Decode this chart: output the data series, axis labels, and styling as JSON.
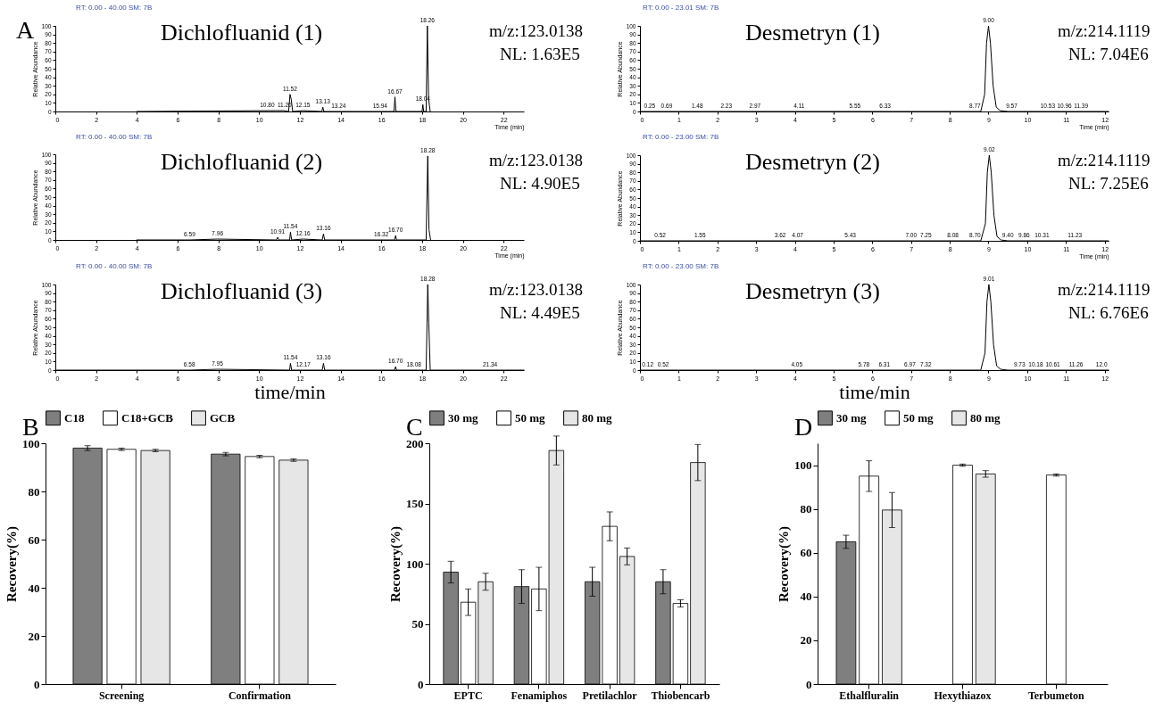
{
  "chart_data": [
    {
      "type": "line",
      "title": "Dichlofluanid (1)",
      "ylabel": "Relative Abundance",
      "xlabel": "Time (min)",
      "xlim": [
        0,
        23
      ],
      "xticks": [
        0,
        2,
        4,
        6,
        8,
        10,
        12,
        14,
        16,
        18,
        20,
        22
      ],
      "ylim": [
        0,
        100
      ],
      "yticks": [
        0,
        10,
        20,
        30,
        40,
        50,
        60,
        70,
        80,
        90,
        100
      ],
      "series": [
        {
          "color": "#000000",
          "x": [
            4,
            10.8,
            11.2,
            11.45,
            11.52,
            11.58,
            11.65,
            12.15,
            13.08,
            13.13,
            13.18,
            16.62,
            16.67,
            16.72,
            18.0,
            18.04,
            18.08,
            18.2,
            18.26,
            18.32,
            18.4
          ],
          "values": [
            0,
            1,
            1,
            0,
            20,
            14,
            0,
            1,
            0,
            5,
            0,
            0,
            17,
            0,
            0,
            8,
            0,
            0,
            100,
            15,
            0
          ]
        }
      ],
      "annotations": [
        "RT: 0.00 - 40.00 SM: 7B",
        "m/z:123.0138",
        "NL: 1.63E5",
        "A",
        {
          "text": "10.80",
          "x": 10.4,
          "y": 1
        },
        {
          "text": "11.20",
          "x": 11.25,
          "y": 1
        },
        {
          "text": "11.52",
          "x": 11.52,
          "y": 20
        },
        {
          "text": "12.15",
          "x": 12.15,
          "y": 1
        },
        {
          "text": "13.13",
          "x": 13.13,
          "y": 5
        },
        {
          "text": "13.24",
          "x": 13.9,
          "y": 0
        },
        {
          "text": "15.94",
          "x": 15.94,
          "y": 0
        },
        {
          "text": "16.67",
          "x": 16.67,
          "y": 17
        },
        {
          "text": "18.04",
          "x": 18.04,
          "y": 8
        },
        {
          "text": "18.26",
          "x": 18.26,
          "y": 100
        }
      ]
    },
    {
      "type": "line",
      "title": "Dichlofluanid (2)",
      "ylabel": "Relative Abundance",
      "xlabel": "Time (min)",
      "xlim": [
        0,
        23
      ],
      "xticks": [
        0,
        2,
        4,
        6,
        8,
        10,
        12,
        14,
        16,
        18,
        20,
        22
      ],
      "ylim": [
        0,
        100
      ],
      "yticks": [
        0,
        10,
        20,
        30,
        40,
        50,
        60,
        70,
        80,
        90,
        100
      ],
      "series": [
        {
          "color": "#000000",
          "x": [
            4,
            6.59,
            7.96,
            10.85,
            10.91,
            10.97,
            11.5,
            11.54,
            11.6,
            12.16,
            13.1,
            13.16,
            13.22,
            16.65,
            16.7,
            16.75,
            18.2,
            18.28,
            18.34,
            18.42
          ],
          "values": [
            0,
            0,
            1,
            0,
            3,
            0,
            0,
            9,
            0,
            1,
            0,
            7,
            0,
            0,
            5,
            0,
            0,
            98,
            12,
            0
          ]
        }
      ],
      "annotations": [
        "RT: 0.00 - 40.00 SM: 7B",
        "m/z:123.0138",
        "NL: 4.90E5",
        {
          "text": "6.59",
          "x": 6.59,
          "y": 0
        },
        {
          "text": "7.96",
          "x": 7.96,
          "y": 1
        },
        {
          "text": "10.91",
          "x": 10.91,
          "y": 3
        },
        {
          "text": "11.54",
          "x": 11.54,
          "y": 9
        },
        {
          "text": "12.16",
          "x": 12.16,
          "y": 1
        },
        {
          "text": "13.16",
          "x": 13.16,
          "y": 7
        },
        {
          "text": "16.32",
          "x": 16.0,
          "y": 0
        },
        {
          "text": "16.70",
          "x": 16.7,
          "y": 5
        },
        {
          "text": "18.28",
          "x": 18.28,
          "y": 98
        }
      ]
    },
    {
      "type": "line",
      "title": "Dichlofluanid (3)",
      "ylabel": "Relative Abundance",
      "xlabel": "time/min",
      "xlim": [
        0,
        23
      ],
      "xticks": [
        0,
        2,
        4,
        6,
        8,
        10,
        12,
        14,
        16,
        18,
        20,
        22
      ],
      "ylim": [
        0,
        100
      ],
      "yticks": [
        0,
        10,
        20,
        30,
        40,
        50,
        60,
        70,
        80,
        90,
        100
      ],
      "series": [
        {
          "color": "#000000",
          "x": [
            0,
            6.58,
            7.95,
            11.5,
            11.54,
            11.6,
            12.17,
            13.1,
            13.16,
            13.22,
            16.65,
            16.7,
            16.75,
            18.08,
            18.2,
            18.28,
            18.33,
            18.4,
            21.34,
            23
          ],
          "values": [
            0,
            0,
            1,
            0,
            8,
            0,
            0,
            0,
            8,
            0,
            0,
            4,
            0,
            0,
            0,
            100,
            55,
            0,
            0,
            0
          ]
        }
      ],
      "annotations": [
        "RT: 0.00 - 40.00 SM: 7B",
        "m/z:123.0138",
        "NL: 4.49E5",
        {
          "text": "6.58",
          "x": 6.58,
          "y": 0
        },
        {
          "text": "7.95",
          "x": 7.95,
          "y": 1
        },
        {
          "text": "11.54",
          "x": 11.54,
          "y": 8
        },
        {
          "text": "12.17",
          "x": 12.17,
          "y": 0
        },
        {
          "text": "13.16",
          "x": 13.16,
          "y": 8
        },
        {
          "text": "16.70",
          "x": 16.7,
          "y": 4
        },
        {
          "text": "18.08",
          "x": 17.6,
          "y": 0
        },
        {
          "text": "18.28",
          "x": 18.28,
          "y": 100
        },
        {
          "text": "21.34",
          "x": 21.34,
          "y": 0
        }
      ]
    },
    {
      "type": "line",
      "title": "Desmetryn (1)",
      "ylabel": "Relative Abundance",
      "xlabel": "Time (min)",
      "xlim": [
        0,
        12.1
      ],
      "xticks": [
        0,
        1,
        2,
        3,
        4,
        5,
        6,
        7,
        8,
        9,
        10,
        11,
        12
      ],
      "ylim": [
        0,
        100
      ],
      "yticks": [
        0,
        10,
        20,
        30,
        40,
        50,
        60,
        70,
        80,
        90,
        100
      ],
      "series": [
        {
          "color": "#000000",
          "x": [
            0,
            8.8,
            8.9,
            8.95,
            9.0,
            9.05,
            9.12,
            9.2,
            9.3,
            9.5,
            12.1
          ],
          "values": [
            0,
            0,
            20,
            80,
            100,
            80,
            30,
            5,
            1,
            0,
            0
          ]
        }
      ],
      "annotations": [
        "RT: 0.00 - 23.01 SM: 7B",
        "m/z:214.1119",
        "NL: 7.04E6",
        {
          "text": "0.25",
          "x": 0.25,
          "y": 0
        },
        {
          "text": "0.69",
          "x": 0.69,
          "y": 0
        },
        {
          "text": "1.48",
          "x": 1.48,
          "y": 0
        },
        {
          "text": "2.23",
          "x": 2.23,
          "y": 0
        },
        {
          "text": "2.97",
          "x": 2.97,
          "y": 0
        },
        {
          "text": "4.11",
          "x": 4.11,
          "y": 0
        },
        {
          "text": "5.55",
          "x": 5.55,
          "y": 0
        },
        {
          "text": "6.33",
          "x": 6.33,
          "y": 0
        },
        {
          "text": "8.77",
          "x": 8.65,
          "y": 0
        },
        {
          "text": "9.00",
          "x": 9.0,
          "y": 100
        },
        {
          "text": "9.57",
          "x": 9.6,
          "y": 0
        },
        {
          "text": "10.53",
          "x": 10.53,
          "y": 0
        },
        {
          "text": "10.96",
          "x": 10.96,
          "y": 0
        },
        {
          "text": "11.39",
          "x": 11.39,
          "y": 0
        }
      ]
    },
    {
      "type": "line",
      "title": "Desmetryn (2)",
      "ylabel": "Relative Abundance",
      "xlabel": "Time (min)",
      "xlim": [
        0,
        12.1
      ],
      "xticks": [
        0,
        1,
        2,
        3,
        4,
        5,
        6,
        7,
        8,
        9,
        10,
        11,
        12
      ],
      "ylim": [
        0,
        100
      ],
      "yticks": [
        0,
        10,
        20,
        30,
        40,
        50,
        60,
        70,
        80,
        90,
        100
      ],
      "series": [
        {
          "color": "#000000",
          "x": [
            0,
            8.8,
            8.92,
            8.97,
            9.02,
            9.07,
            9.14,
            9.22,
            9.32,
            9.5,
            12.1
          ],
          "values": [
            0,
            0,
            20,
            80,
            100,
            80,
            30,
            5,
            1,
            0,
            0
          ]
        }
      ],
      "annotations": [
        "RT: 0.00 - 23.00 SM: 7B",
        "m/z:214.1119",
        "NL: 7.25E6",
        {
          "text": "0.52",
          "x": 0.52,
          "y": 0
        },
        {
          "text": "1.55",
          "x": 1.55,
          "y": 0
        },
        {
          "text": "3.62",
          "x": 3.62,
          "y": 0
        },
        {
          "text": "4.07",
          "x": 4.07,
          "y": 0
        },
        {
          "text": "5.43",
          "x": 5.43,
          "y": 0
        },
        {
          "text": "7.00",
          "x": 7.0,
          "y": 0
        },
        {
          "text": "7.25",
          "x": 7.38,
          "y": 0
        },
        {
          "text": "8.08",
          "x": 8.08,
          "y": 0
        },
        {
          "text": "8.70",
          "x": 8.65,
          "y": 0
        },
        {
          "text": "9.02",
          "x": 9.02,
          "y": 100
        },
        {
          "text": "9.40",
          "x": 9.5,
          "y": 0
        },
        {
          "text": "9.86",
          "x": 9.92,
          "y": 0
        },
        {
          "text": "10.31",
          "x": 10.38,
          "y": 0
        },
        {
          "text": "11.23",
          "x": 11.23,
          "y": 0
        }
      ]
    },
    {
      "type": "line",
      "title": "Desmetryn (3)",
      "ylabel": "Relative Abundance",
      "xlabel": "time/min",
      "xlim": [
        0,
        12.1
      ],
      "xticks": [
        0,
        1,
        2,
        3,
        4,
        5,
        6,
        7,
        8,
        9,
        10,
        11,
        12
      ],
      "ylim": [
        0,
        100
      ],
      "yticks": [
        0,
        10,
        20,
        30,
        40,
        50,
        60,
        70,
        80,
        90,
        100
      ],
      "series": [
        {
          "color": "#000000",
          "x": [
            0,
            8.8,
            8.91,
            8.96,
            9.01,
            9.06,
            9.13,
            9.21,
            9.31,
            9.5,
            12.1
          ],
          "values": [
            0,
            0,
            20,
            80,
            100,
            80,
            30,
            5,
            1,
            0,
            0
          ]
        }
      ],
      "annotations": [
        "RT: 0.00 - 23.00 SM: 7B",
        "m/z:214.1119",
        "NL: 6.76E6",
        {
          "text": "0.12",
          "x": 0.2,
          "y": 0
        },
        {
          "text": "0.52",
          "x": 0.6,
          "y": 0
        },
        {
          "text": "4.05",
          "x": 4.05,
          "y": 0
        },
        {
          "text": "5.78",
          "x": 5.78,
          "y": 0
        },
        {
          "text": "6.31",
          "x": 6.31,
          "y": 0
        },
        {
          "text": "6.97",
          "x": 6.97,
          "y": 0
        },
        {
          "text": "7.32",
          "x": 7.38,
          "y": 0
        },
        {
          "text": "9.01",
          "x": 9.01,
          "y": 100
        },
        {
          "text": "9.73",
          "x": 9.8,
          "y": 0
        },
        {
          "text": "10.18",
          "x": 10.22,
          "y": 0
        },
        {
          "text": "10.61",
          "x": 10.66,
          "y": 0
        },
        {
          "text": "11.26",
          "x": 11.26,
          "y": 0
        },
        {
          "text": "12.0",
          "x": 11.92,
          "y": 0
        }
      ]
    },
    {
      "type": "bar",
      "ylabel": "Recovery(%)",
      "categories": [
        "Screening",
        "Confirmation"
      ],
      "ylim": [
        0,
        100
      ],
      "yticks": [
        0,
        20,
        40,
        60,
        80,
        100
      ],
      "legend": "top",
      "series": [
        {
          "name": "C18",
          "color": "#7f7f7f",
          "values": [
            98,
            95.5
          ],
          "errors": [
            1,
            0.7
          ]
        },
        {
          "name": "C18+GCB",
          "color": "#ffffff",
          "values": [
            97.5,
            94.5
          ],
          "errors": [
            0.5,
            0.5
          ]
        },
        {
          "name": "GCB",
          "color": "#e6e6e6",
          "values": [
            97,
            93
          ],
          "errors": [
            0.5,
            0.5
          ]
        }
      ],
      "annotations": [
        "B"
      ]
    },
    {
      "type": "bar",
      "ylabel": "Recovery(%)",
      "categories": [
        "EPTC",
        "Fenamiphos",
        "Pretilachlor",
        "Thiobencarb"
      ],
      "ylim": [
        0,
        200
      ],
      "yticks": [
        0,
        50,
        100,
        150,
        200
      ],
      "legend": "top",
      "series": [
        {
          "name": "30 mg",
          "color": "#7f7f7f",
          "values": [
            93,
            81,
            85,
            85
          ],
          "errors": [
            9,
            14,
            12,
            10
          ]
        },
        {
          "name": "50 mg",
          "color": "#ffffff",
          "values": [
            68,
            79,
            131,
            67
          ],
          "errors": [
            11,
            18,
            12,
            3
          ]
        },
        {
          "name": "80 mg",
          "color": "#e6e6e6",
          "values": [
            85,
            194,
            106,
            184
          ],
          "errors": [
            7,
            12,
            7,
            15
          ]
        }
      ],
      "annotations": [
        "C"
      ]
    },
    {
      "type": "bar",
      "ylabel": "Recovery(%)",
      "categories": [
        "Ethalfluralin",
        "Hexythiazox",
        "Terbumeton"
      ],
      "ylim": [
        0,
        110
      ],
      "yticks": [
        0,
        20,
        40,
        60,
        80,
        100
      ],
      "legend": "top",
      "series": [
        {
          "name": "30 mg",
          "color": "#7f7f7f",
          "values": [
            65,
            null,
            null
          ],
          "errors": [
            3,
            null,
            null
          ]
        },
        {
          "name": "50 mg",
          "color": "#ffffff",
          "values": [
            95,
            100,
            95.5
          ],
          "errors": [
            7,
            0.5,
            0.5
          ]
        },
        {
          "name": "80 mg",
          "color": "#e6e6e6",
          "values": [
            79.5,
            96,
            null
          ],
          "errors": [
            8,
            1.5,
            null
          ]
        }
      ],
      "annotations": [
        "D"
      ]
    }
  ]
}
